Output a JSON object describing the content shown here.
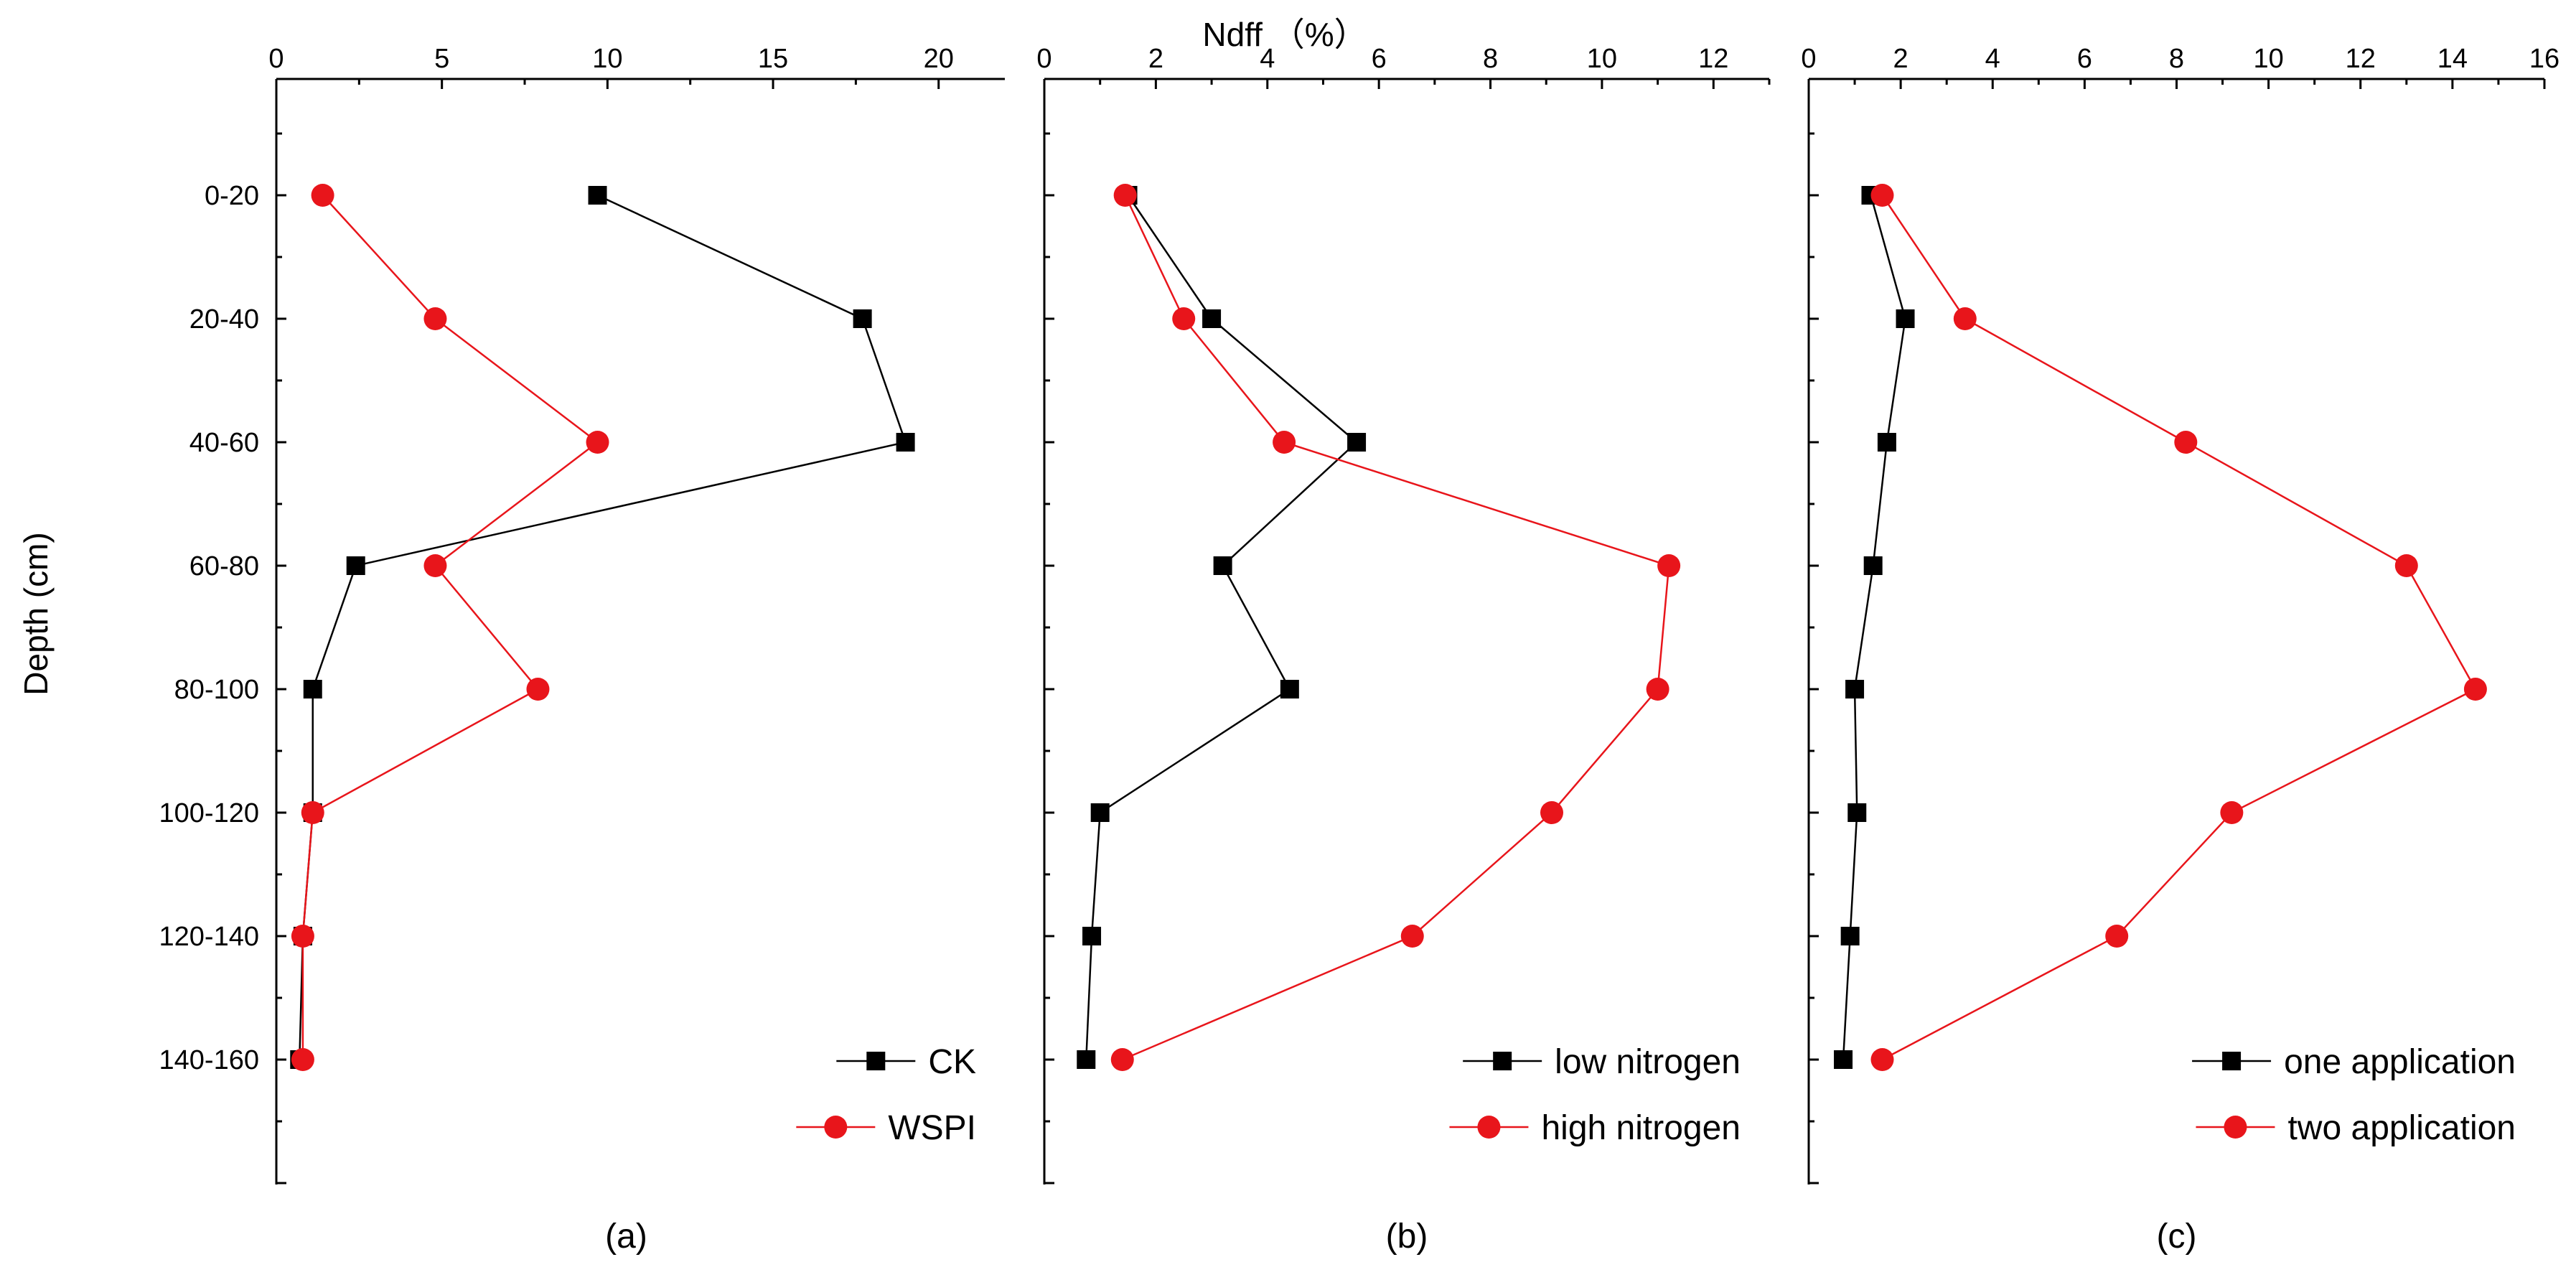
{
  "figure": {
    "top_label": "Ndff （%）",
    "y_label": "Depth (cm)"
  },
  "chart_data": [
    {
      "type": "line",
      "panel_label": "(a)",
      "title": "Ndff （%）",
      "xlabel": "Ndff （%）",
      "ylabel": "Depth (cm)",
      "xlim": [
        0,
        22
      ],
      "xticks": [
        0,
        5,
        10,
        15,
        20
      ],
      "categories": [
        "0-20",
        "20-40",
        "40-60",
        "60-80",
        "80-100",
        "100-120",
        "120-140",
        "140-160"
      ],
      "legend_position": "bottom-right",
      "series": [
        {
          "name": "CK",
          "marker": "square",
          "color": "#000000",
          "values": [
            9.7,
            17.7,
            19.0,
            2.4,
            1.1,
            1.1,
            0.8,
            0.7
          ]
        },
        {
          "name": "WSPI",
          "marker": "circle",
          "color": "#e8151b",
          "values": [
            1.4,
            4.8,
            9.7,
            4.8,
            7.9,
            1.1,
            0.8,
            0.8
          ]
        }
      ]
    },
    {
      "type": "line",
      "panel_label": "(b)",
      "xlim": [
        0,
        13
      ],
      "xticks": [
        0,
        2,
        4,
        6,
        8,
        10,
        12
      ],
      "categories": [
        "0-20",
        "20-40",
        "40-60",
        "60-80",
        "80-100",
        "100-120",
        "120-140",
        "140-160"
      ],
      "legend_position": "bottom-right",
      "series": [
        {
          "name": "low nitrogen",
          "marker": "square",
          "color": "#000000",
          "values": [
            1.5,
            3.0,
            5.6,
            3.2,
            4.4,
            1.0,
            0.85,
            0.75
          ]
        },
        {
          "name": "high nitrogen",
          "marker": "circle",
          "color": "#e8151b",
          "values": [
            1.45,
            2.5,
            4.3,
            11.2,
            11.0,
            9.1,
            6.6,
            1.4
          ]
        }
      ]
    },
    {
      "type": "line",
      "panel_label": "(c)",
      "xlim": [
        0,
        16
      ],
      "xticks": [
        0,
        2,
        4,
        6,
        8,
        10,
        12,
        14,
        16
      ],
      "categories": [
        "0-20",
        "20-40",
        "40-60",
        "60-80",
        "80-100",
        "100-120",
        "120-140",
        "140-160"
      ],
      "legend_position": "bottom-right",
      "series": [
        {
          "name": "one application",
          "marker": "square",
          "color": "#000000",
          "values": [
            1.35,
            2.1,
            1.7,
            1.4,
            1.0,
            1.05,
            0.9,
            0.75
          ]
        },
        {
          "name": "two application",
          "marker": "circle",
          "color": "#e8151b",
          "values": [
            1.6,
            3.4,
            8.2,
            13.0,
            14.5,
            9.2,
            6.7,
            1.6
          ]
        }
      ]
    }
  ]
}
